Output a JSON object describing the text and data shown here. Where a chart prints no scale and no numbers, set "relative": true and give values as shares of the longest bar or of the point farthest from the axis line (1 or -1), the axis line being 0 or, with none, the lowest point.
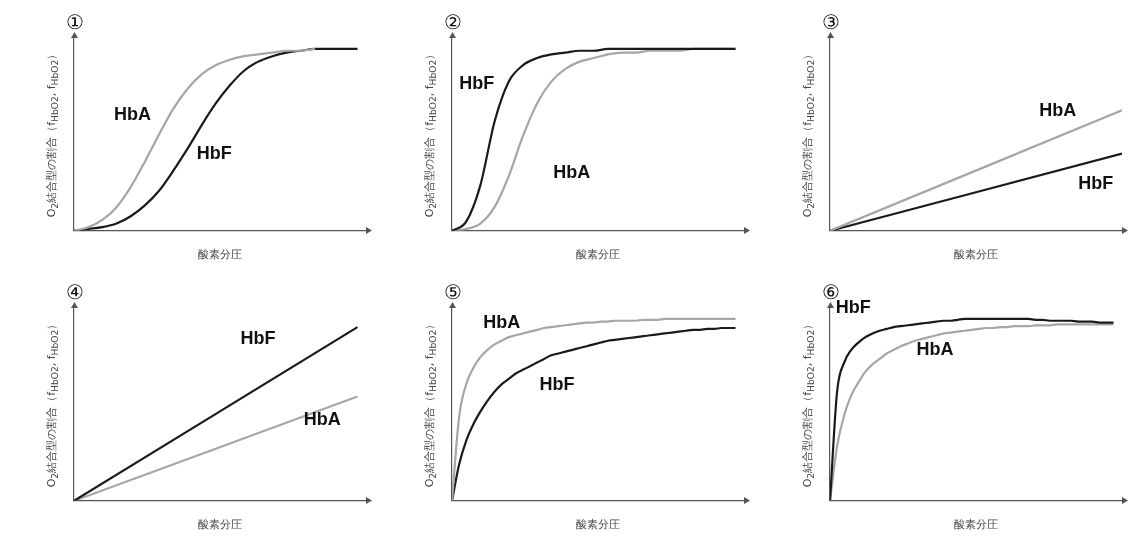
{
  "chart_data": [
    {
      "type": "line",
      "title": "①",
      "xlabel": "酸素分圧",
      "ylabel": "O$_{2}$結合型の割合（f$_{HbO2}$, f$_{HbO2}$）",
      "relative": true,
      "categories": [
        null,
        null,
        null,
        null,
        null,
        null,
        null,
        null,
        null,
        null,
        null,
        null,
        null,
        null,
        null,
        null,
        null,
        null,
        null,
        null,
        null
      ],
      "series": [
        {
          "name": "HbA",
          "color": "#a6a6a6",
          "values": [
            0,
            0.02,
            0.06,
            0.13,
            0.24,
            0.38,
            0.53,
            0.67,
            0.78,
            0.86,
            0.91,
            0.94,
            0.96,
            0.97,
            0.98,
            0.99,
            0.99,
            1,
            null,
            null,
            null
          ]
        },
        {
          "name": "HbF",
          "color": "#1a1a1a",
          "values": [
            0,
            0.01,
            0.02,
            0.04,
            0.08,
            0.14,
            0.22,
            0.33,
            0.45,
            0.58,
            0.7,
            0.8,
            0.88,
            0.93,
            0.96,
            0.98,
            0.99,
            1,
            1,
            1,
            1
          ]
        }
      ]
    },
    {
      "type": "line",
      "title": "②",
      "xlabel": "酸素分圧",
      "ylabel": "O$_{2}$結合型の割合（f$_{HbO2}$, f$_{HbO2}$）",
      "relative": true,
      "categories": [
        null,
        null,
        null,
        null,
        null,
        null,
        null,
        null,
        null,
        null,
        null,
        null,
        null,
        null,
        null,
        null,
        null,
        null,
        null,
        null,
        null
      ],
      "series": [
        {
          "name": "HbF",
          "color": "#1a1a1a",
          "values": [
            0,
            0.05,
            0.25,
            0.6,
            0.82,
            0.91,
            0.95,
            0.97,
            0.98,
            0.99,
            0.99,
            1,
            1,
            1,
            1,
            1,
            1,
            1,
            1,
            1,
            1
          ]
        },
        {
          "name": "HbA",
          "color": "#a6a6a6",
          "values": [
            0,
            0.01,
            0.04,
            0.13,
            0.3,
            0.52,
            0.7,
            0.82,
            0.89,
            0.93,
            0.95,
            0.97,
            0.98,
            0.98,
            0.99,
            0.99,
            0.99,
            1,
            1,
            1,
            1
          ]
        }
      ]
    },
    {
      "type": "line",
      "title": "③",
      "xlabel": "酸素分圧",
      "ylabel": "O$_{2}$結合型の割合（f$_{HbO2}$, f$_{HbO2}$）",
      "relative": true,
      "categories": [
        null,
        null
      ],
      "series": [
        {
          "name": "HbA",
          "color": "#a6a6a6",
          "values": [
            0,
            1
          ]
        },
        {
          "name": "HbF",
          "color": "#1a1a1a",
          "values": [
            0,
            0.64
          ]
        }
      ]
    },
    {
      "type": "line",
      "title": "④",
      "xlabel": "酸素分圧",
      "ylabel": "O$_{2}$結合型の割合（f$_{HbO2}$, f$_{HbO2}$）",
      "relative": true,
      "categories": [
        null,
        null
      ],
      "series": [
        {
          "name": "HbF",
          "color": "#1a1a1a",
          "values": [
            0,
            1
          ]
        },
        {
          "name": "HbA",
          "color": "#a6a6a6",
          "values": [
            0,
            0.6
          ]
        }
      ]
    },
    {
      "type": "line",
      "title": "⑤",
      "xlabel": "酸素分圧",
      "ylabel": "O$_{2}$結合型の割合（f$_{HbO2}$, f$_{HbO2}$）",
      "relative": true,
      "categories": [
        null,
        null,
        null,
        null,
        null,
        null,
        null,
        null,
        null,
        null,
        null,
        null,
        null,
        null,
        null,
        null,
        null,
        null,
        null,
        null,
        null,
        null,
        null,
        null,
        null,
        null,
        null,
        null,
        null,
        null,
        null,
        null,
        null,
        null,
        null,
        null,
        null,
        null,
        null,
        null,
        null
      ],
      "series": [
        {
          "name": "HbA",
          "color": "#a6a6a6",
          "values": [
            0,
            0.46,
            0.64,
            0.73,
            0.79,
            0.83,
            0.86,
            0.88,
            0.9,
            0.91,
            0.92,
            0.93,
            0.94,
            0.95,
            0.955,
            0.96,
            0.965,
            0.97,
            0.975,
            0.98,
            0.98,
            0.985,
            0.985,
            0.99,
            0.99,
            0.99,
            0.99,
            0.995,
            0.995,
            0.995,
            1,
            1,
            1,
            1,
            1,
            1,
            1,
            1,
            1,
            1,
            1
          ]
        },
        {
          "name": "HbF",
          "color": "#1a1a1a",
          "values": [
            0,
            0.2,
            0.33,
            0.42,
            0.49,
            0.55,
            0.6,
            0.64,
            0.67,
            0.7,
            0.72,
            0.74,
            0.76,
            0.78,
            0.8,
            0.81,
            0.82,
            0.83,
            0.84,
            0.85,
            0.86,
            0.87,
            0.88,
            0.885,
            0.89,
            0.895,
            0.9,
            0.905,
            0.91,
            0.915,
            0.92,
            0.925,
            0.93,
            0.935,
            0.94,
            0.94,
            0.945,
            0.945,
            0.95,
            0.95,
            0.95
          ]
        }
      ]
    },
    {
      "type": "line",
      "title": "⑥",
      "xlabel": "酸素分圧",
      "ylabel": "O$_{2}$結合型の割合（f$_{HbO2}$, f$_{HbO2}$）",
      "relative": true,
      "categories": [
        null,
        null,
        null,
        null,
        null,
        null,
        null,
        null,
        null,
        null,
        null,
        null,
        null,
        null,
        null,
        null,
        null,
        null,
        null,
        null,
        null,
        null,
        null,
        null,
        null,
        null,
        null,
        null,
        null,
        null,
        null,
        null,
        null,
        null,
        null,
        null,
        null,
        null,
        null,
        null,
        null
      ],
      "series": [
        {
          "name": "HbF",
          "color": "#1a1a1a",
          "values": [
            0,
            0.6,
            0.76,
            0.83,
            0.87,
            0.9,
            0.92,
            0.935,
            0.945,
            0.955,
            0.96,
            0.965,
            0.97,
            0.975,
            0.98,
            0.985,
            0.99,
            0.99,
            0.995,
            1,
            1,
            1,
            1,
            1,
            1,
            1,
            1,
            1,
            1,
            0.995,
            0.995,
            0.99,
            0.99,
            0.99,
            0.99,
            0.985,
            0.985,
            0.985,
            0.98,
            0.98,
            0.98
          ]
        },
        {
          "name": "HbA",
          "color": "#a6a6a6",
          "values": [
            0,
            0.3,
            0.47,
            0.58,
            0.65,
            0.71,
            0.75,
            0.78,
            0.81,
            0.83,
            0.85,
            0.865,
            0.88,
            0.89,
            0.9,
            0.91,
            0.92,
            0.925,
            0.93,
            0.935,
            0.94,
            0.945,
            0.95,
            0.95,
            0.955,
            0.955,
            0.96,
            0.96,
            0.96,
            0.965,
            0.965,
            0.965,
            0.97,
            0.97,
            0.97,
            0.97,
            0.97,
            0.97,
            0.97,
            0.97,
            0.97
          ]
        }
      ]
    }
  ]
}
